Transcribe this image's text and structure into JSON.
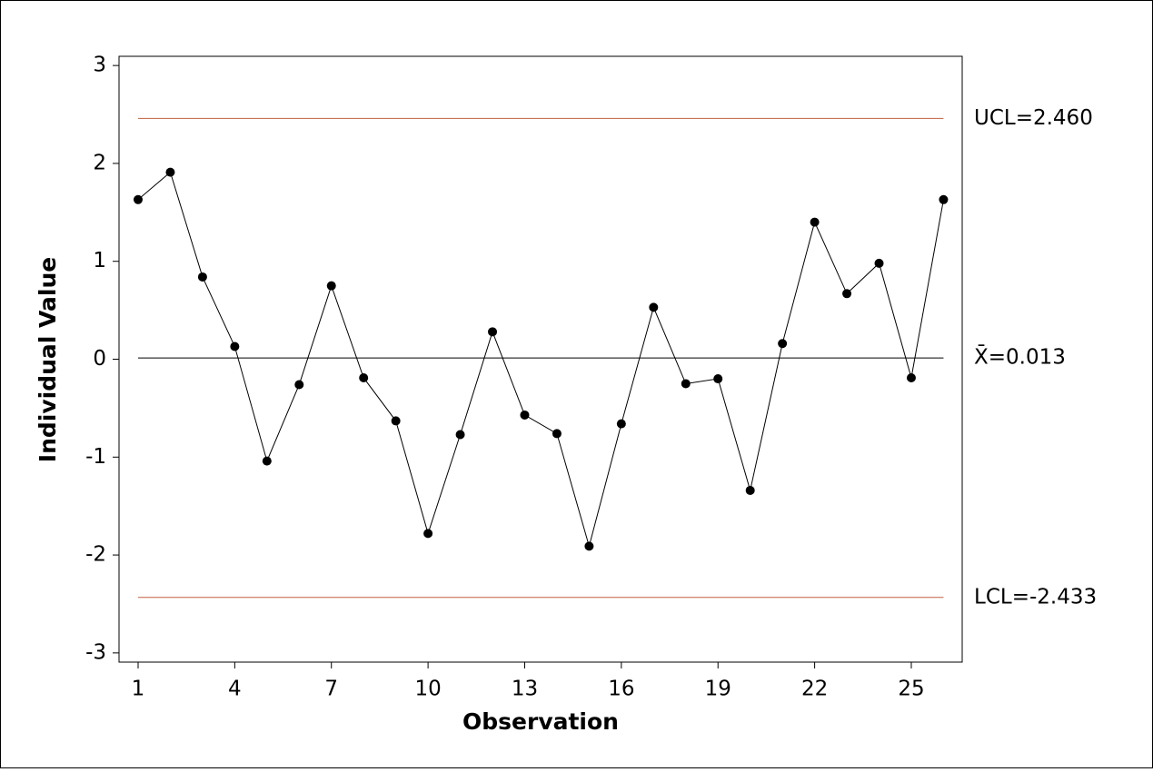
{
  "chart_data": {
    "type": "line",
    "x_label": "Observation",
    "y_label": "Individual Value",
    "x": [
      1,
      2,
      3,
      4,
      5,
      6,
      7,
      8,
      9,
      10,
      11,
      12,
      13,
      14,
      15,
      16,
      17,
      18,
      19,
      20,
      21,
      22,
      23,
      24,
      25,
      26
    ],
    "series": [
      {
        "color": "#000000",
        "values": [
          1.63,
          1.91,
          0.84,
          0.13,
          -1.04,
          -0.26,
          0.75,
          -0.19,
          -0.63,
          -1.78,
          -0.77,
          0.28,
          -0.57,
          -0.76,
          -1.91,
          -0.66,
          0.53,
          -0.25,
          -0.2,
          -1.34,
          0.16,
          1.4,
          0.67,
          0.98,
          -0.19,
          1.63
        ]
      }
    ],
    "reference_lines": [
      {
        "value": 2.46,
        "label": "UCL=2.460",
        "color": "#c0613f"
      },
      {
        "value": 0.013,
        "label": "X̄=0.013",
        "color": "#000000"
      },
      {
        "value": -2.433,
        "label": "LCL=-2.433",
        "color": "#c0613f"
      }
    ],
    "xlim": [
      0.408,
      26.58
    ],
    "ylim": [
      -3.094,
      3.094
    ],
    "xticks": [
      1,
      4,
      7,
      10,
      13,
      16,
      19,
      22,
      25
    ],
    "yticks": [
      -3,
      -2,
      -1,
      0,
      1,
      2,
      3
    ]
  }
}
